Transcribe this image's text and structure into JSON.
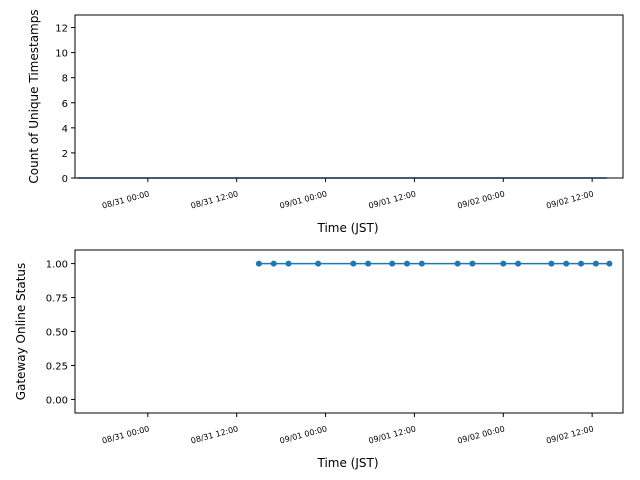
{
  "chart_data": [
    {
      "type": "line",
      "ylabel": "Count of Unique Timestamps",
      "xlabel": "Time (JST)",
      "x": [
        "08/30 14:30",
        "09/02 14:00"
      ],
      "series": [
        {
          "color": "#1f77b4",
          "values": [
            0,
            0
          ]
        }
      ],
      "xlim": [
        "08/30 14:10",
        "09/02 16:10"
      ],
      "xticks": [
        "08/31 00:00",
        "08/31 12:00",
        "09/01 00:00",
        "09/01 12:00",
        "09/02 00:00",
        "09/02 12:00"
      ],
      "ylim": [
        0,
        13
      ],
      "yticks": [
        0,
        2,
        4,
        6,
        8,
        10,
        12
      ],
      "markers": false
    },
    {
      "type": "line",
      "ylabel": "Gateway Online Status",
      "xlabel": "Time (JST)",
      "x": [
        "08/31 15:00",
        "08/31 17:00",
        "08/31 19:00",
        "08/31 23:00",
        "09/01 03:45",
        "09/01 05:45",
        "09/01 09:00",
        "09/01 11:00",
        "09/01 13:00",
        "09/01 17:50",
        "09/01 19:50",
        "09/02 00:00",
        "09/02 02:00",
        "09/02 06:30",
        "09/02 08:30",
        "09/02 10:30",
        "09/02 12:30",
        "09/02 14:20"
      ],
      "series": [
        {
          "color": "#1f77b4",
          "values": [
            1,
            1,
            1,
            1,
            1,
            1,
            1,
            1,
            1,
            1,
            1,
            1,
            1,
            1,
            1,
            1,
            1,
            1
          ]
        }
      ],
      "xlim": [
        "08/30 14:10",
        "09/02 16:10"
      ],
      "xticks": [
        "08/31 00:00",
        "08/31 12:00",
        "09/01 00:00",
        "09/01 12:00",
        "09/02 00:00",
        "09/02 12:00"
      ],
      "ylim": [
        -0.1,
        1.1
      ],
      "yticks": [
        {
          "value": 0,
          "label": "0.00"
        },
        {
          "value": 0.25,
          "label": "0.25"
        },
        {
          "value": 0.5,
          "label": "0.50"
        },
        {
          "value": 0.75,
          "label": "0.75"
        },
        {
          "value": 1,
          "label": "1.00"
        }
      ],
      "markers": true
    }
  ]
}
